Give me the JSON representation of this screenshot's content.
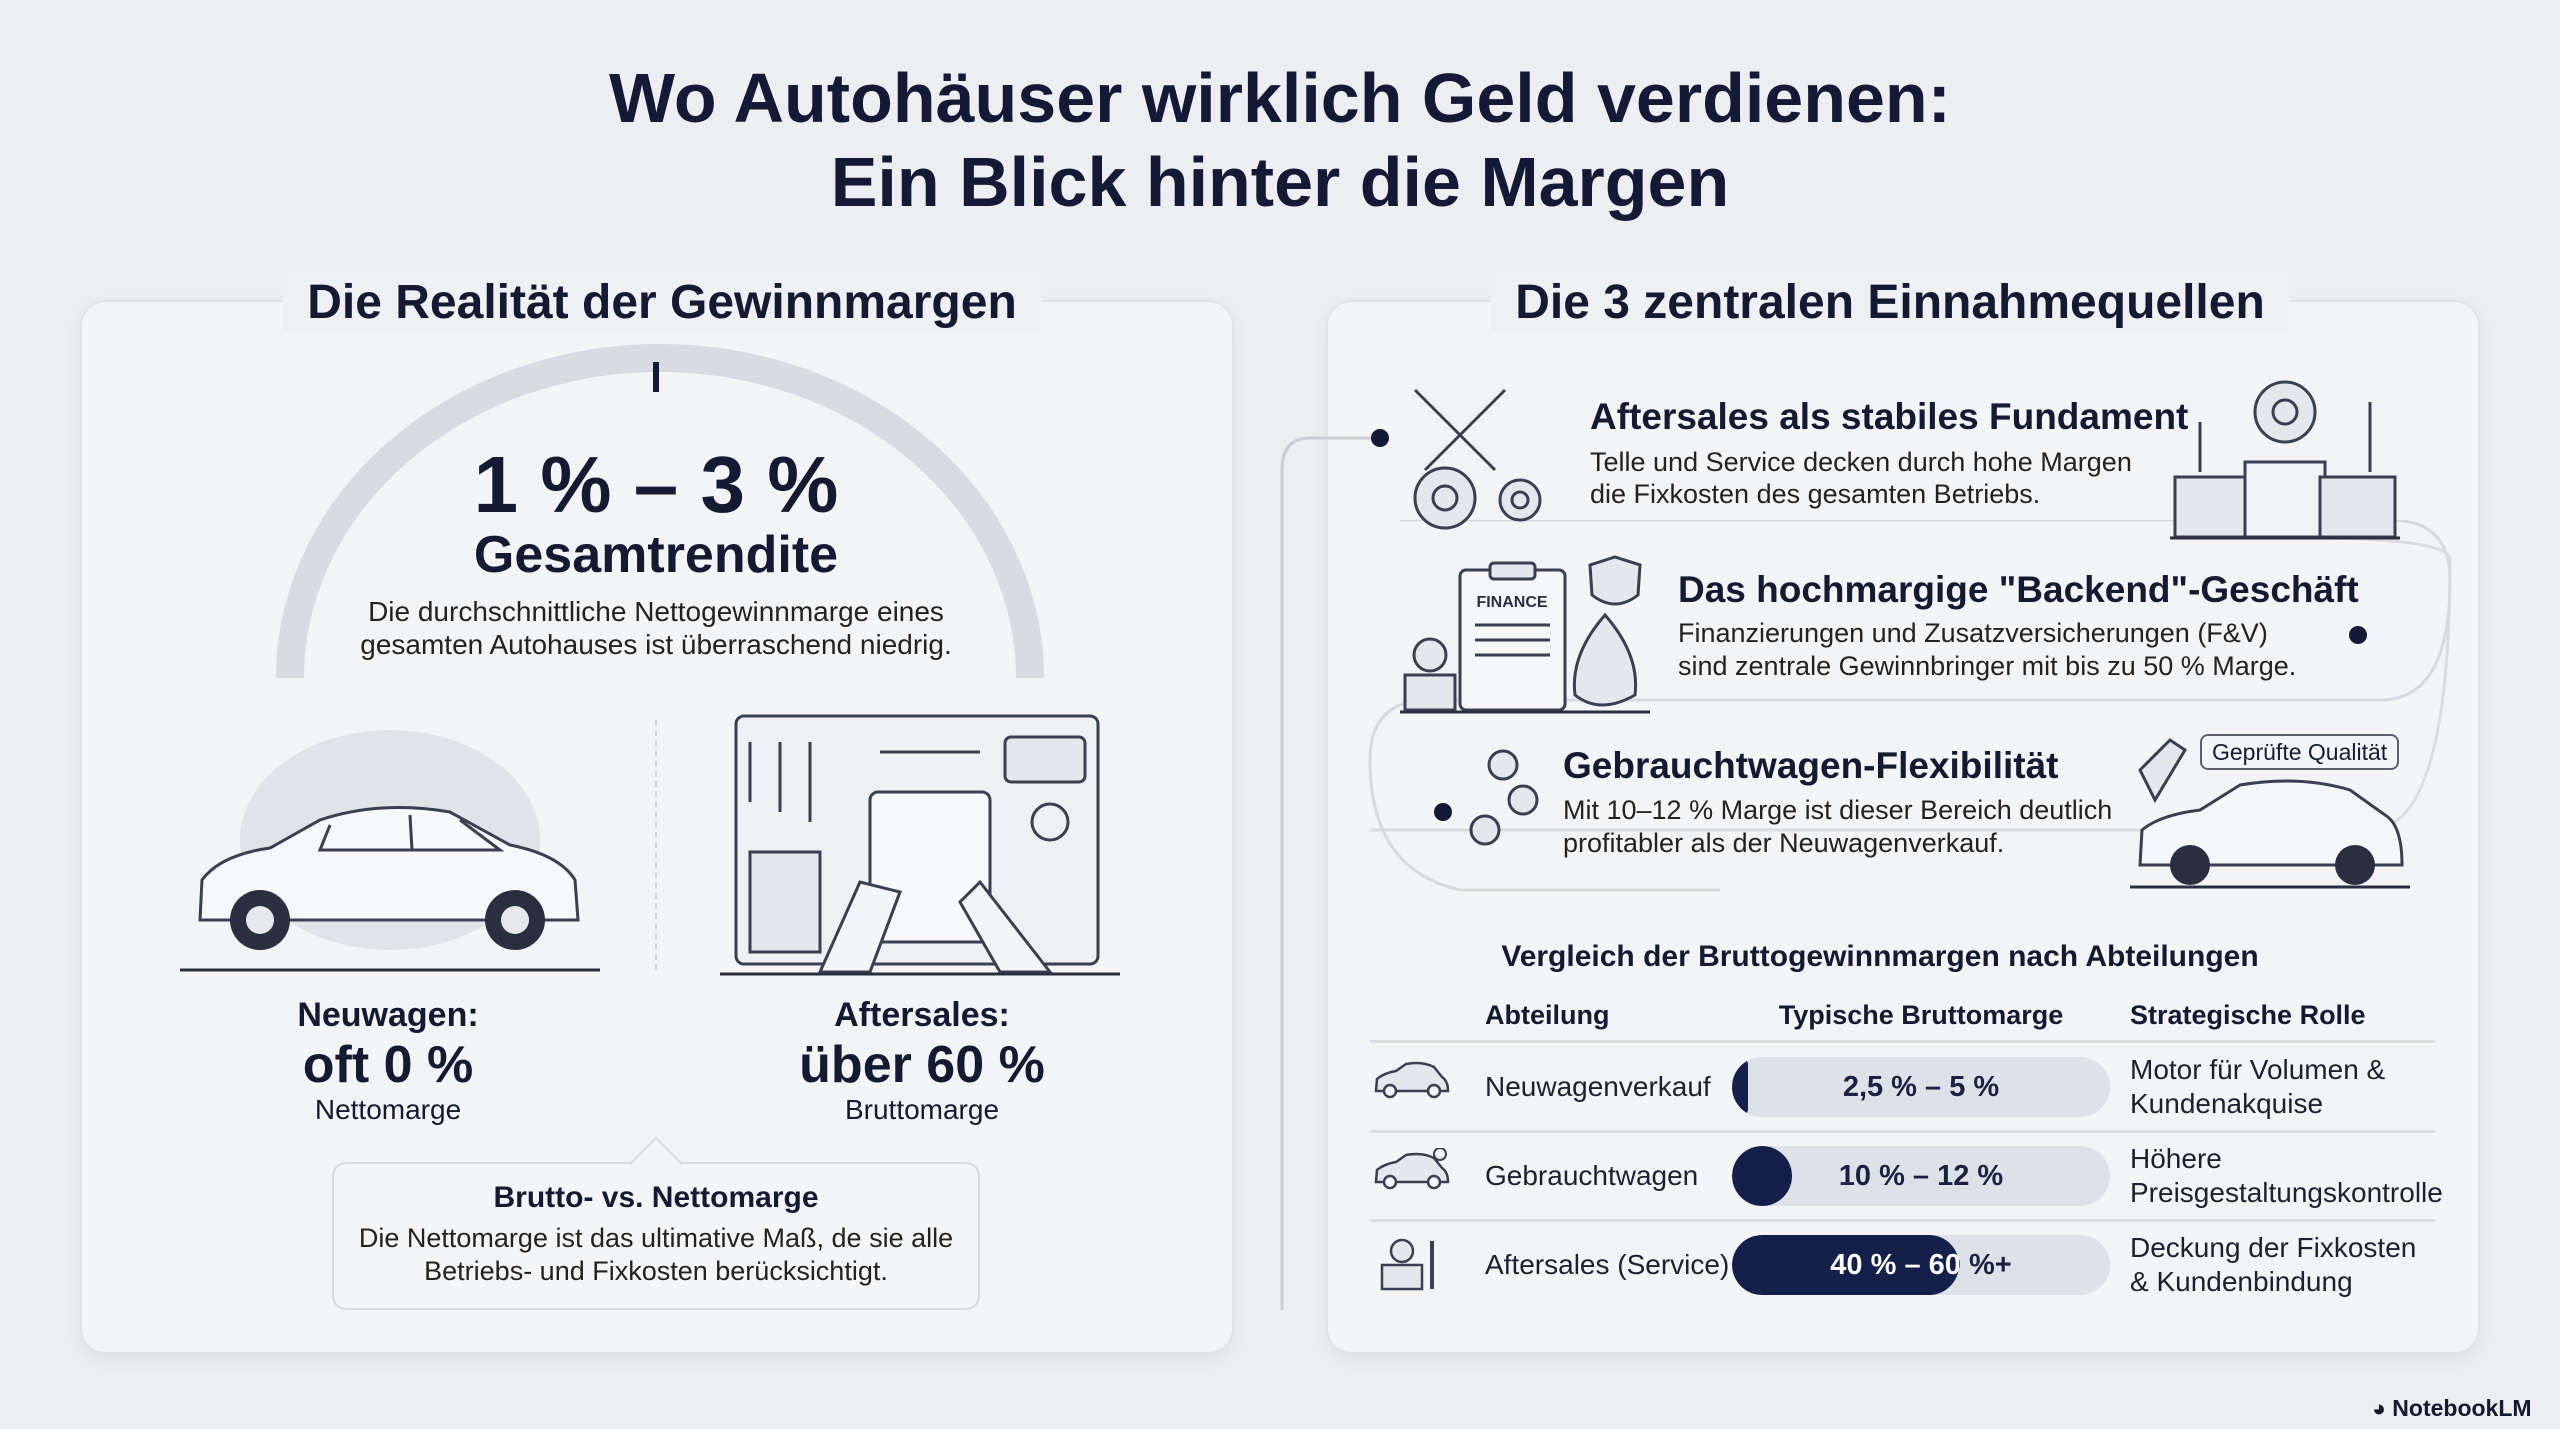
{
  "title": {
    "line1": "Wo Autohäuser wirklich Geld verdienen:",
    "line2": "Ein Blick hinter die Margen"
  },
  "left": {
    "heading": "Die Realität der Gewinnmargen",
    "big_value": "1 % – 3 %",
    "big_label": "Gesamtrendite",
    "description": [
      "Die durchschnittliche Nettogewinnmarge eines",
      "gesamten Autohauses ist überraschend niedrig."
    ],
    "new_cars": {
      "label": "Neuwagen:",
      "value": "oft 0 %",
      "sub": "Nettomarge",
      "icon": "car-icon"
    },
    "aftersales": {
      "label": "Aftersales:",
      "value": "über 60 %",
      "sub": "Bruttomarge",
      "icon": "workshop-tools-icon"
    },
    "callout": {
      "title": "Brutto- vs. Nettomarge",
      "text": [
        "Die Nettomarge ist das ultimative Maß, de sie alle",
        "Betriebs- und Fixkosten berücksichtigt."
      ]
    }
  },
  "right": {
    "heading": "Die 3 zentralen Einnahmequellen",
    "cards": [
      {
        "title": "Aftersales als stabiles Fundament",
        "body": [
          "Telle und Service decken durch hohe Margen",
          "die Fixkosten des gesamten Betriebs."
        ],
        "icon": "wrench-gears-icon"
      },
      {
        "title": "Das hochmargige \"Backend\"-Geschäft",
        "body": [
          "Finanzierungen und Zusatzversicherungen (F&V)",
          "sind zentrale Gewinnbringer mit bis zu 50 % Marge."
        ],
        "icon": "finance-clipboard-icon",
        "clipboard_text": "FINANCE"
      },
      {
        "title": "Gebrauchtwagen-Flexibilität",
        "body": [
          "Mit 10–12 % Marge ist dieser Bereich deutlich",
          "profitabler als der Neuwagenverkauf."
        ],
        "icon": "coins-icon",
        "badge": "Geprüfte Qualität"
      }
    ],
    "table": {
      "title": "Vergleich der Bruttogewinnmargen nach Abteilungen",
      "headers": [
        "Abteilung",
        "Typische Bruttomarge",
        "Strategische Rolle"
      ],
      "rows": [
        {
          "department": "Neuwagenverkauf",
          "margin": "2,5 % – 5 %",
          "fill_percent": 4,
          "role": [
            "Motor für Volumen &",
            "Kundenakquise"
          ],
          "icon": "car-icon"
        },
        {
          "department": "Gebrauchtwagen",
          "margin": "10 % – 12 %",
          "fill_percent": 16,
          "role": [
            "Höhere",
            "Preisgestaltungskontrolle"
          ],
          "icon": "car-check-icon"
        },
        {
          "department": "Aftersales (Service)",
          "margin": "40 % – 60 %+",
          "fill_percent": 60,
          "role": [
            "Deckung der Fixkosten",
            "& Kundenbindung"
          ],
          "icon": "gear-wrench-icon"
        }
      ]
    }
  },
  "footer": {
    "brand": "NotebookLM"
  },
  "colors": {
    "navy": "#141a36",
    "bar_bg": "#dde1e8",
    "bar_fill": "#14204a",
    "arc": "#d8dbe2"
  }
}
